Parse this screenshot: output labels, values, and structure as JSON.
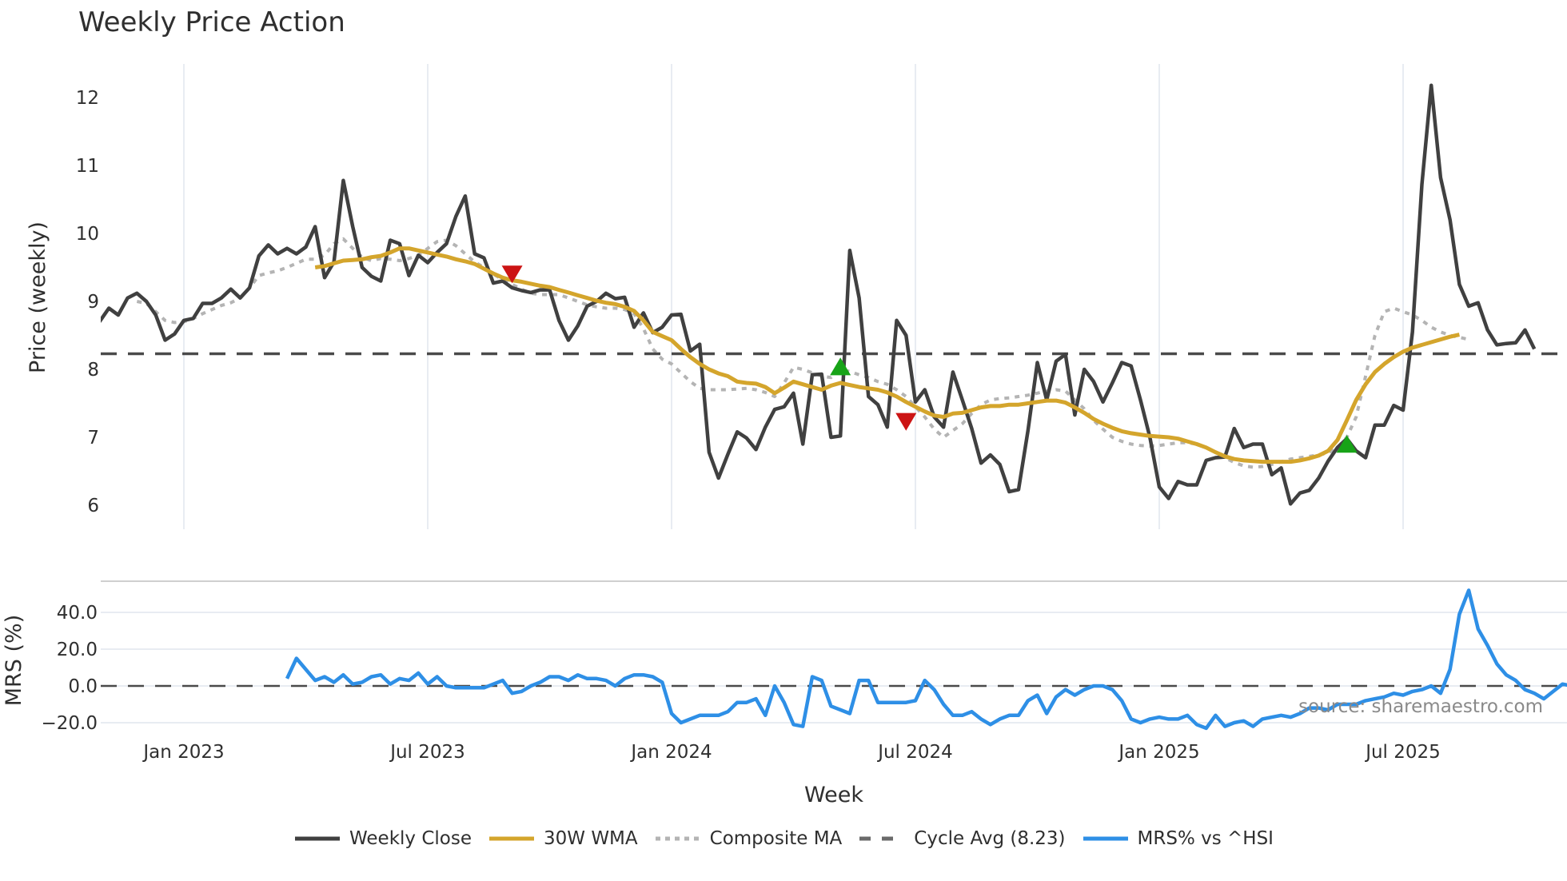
{
  "title": "Weekly Price Action",
  "source": "source: sharemaestro.com",
  "colors": {
    "weekly_close": "#404040",
    "wma": "#d4a52c",
    "composite_ma": "#b4b4b4",
    "cycle_avg": "#4a4a4a",
    "mrs": "#2e8fe6",
    "buy_marker": "#17a317",
    "sell_marker": "#cc1414",
    "grid": "#e8ecf2"
  },
  "legend": [
    {
      "key": "weekly_close",
      "label": "Weekly Close"
    },
    {
      "key": "wma",
      "label": "30W WMA"
    },
    {
      "key": "composite_ma",
      "label": "Composite MA"
    },
    {
      "key": "cycle_avg",
      "label": "Cycle Avg (8.23)"
    },
    {
      "key": "mrs",
      "label": "MRS% vs ^HSI"
    }
  ],
  "chart_data": [
    {
      "type": "line",
      "title": "Weekly Price Action",
      "xlabel": "Week",
      "ylabel": "Price (weekly)",
      "ylim": [
        5.6,
        12.5
      ],
      "yticks": [
        6,
        7,
        8,
        9,
        10,
        11,
        12
      ],
      "xticks": [
        "Jan 2023",
        "Jul 2023",
        "Jan 2024",
        "Jul 2024",
        "Jan 2025",
        "Jul 2025"
      ],
      "grid": true,
      "legend_position": "bottom",
      "cycle_avg": 8.23,
      "x_start_week_index_of_jan2023": 9,
      "weeks_per_half_year": 26,
      "series": [
        {
          "name": "Weekly Close",
          "start_index": 0,
          "values": [
            8.7,
            8.9,
            8.8,
            9.05,
            9.12,
            9.0,
            8.8,
            8.43,
            8.52,
            8.72,
            8.75,
            8.97,
            8.97,
            9.05,
            9.18,
            9.05,
            9.2,
            9.67,
            9.83,
            9.7,
            9.78,
            9.7,
            9.8,
            10.1,
            9.35,
            9.58,
            10.78,
            10.1,
            9.5,
            9.37,
            9.3,
            9.9,
            9.85,
            9.38,
            9.68,
            9.57,
            9.72,
            9.85,
            10.25,
            10.55,
            9.7,
            9.64,
            9.27,
            9.3,
            9.2,
            9.16,
            9.13,
            9.17,
            9.17,
            8.72,
            8.43,
            8.64,
            8.93,
            9.0,
            9.12,
            9.04,
            9.06,
            8.62,
            8.83,
            8.54,
            8.62,
            8.8,
            8.81,
            8.27,
            8.37,
            6.78,
            6.4,
            6.75,
            7.08,
            6.99,
            6.82,
            7.15,
            7.41,
            7.45,
            7.65,
            6.9,
            7.92,
            7.93,
            7.0,
            7.02,
            9.75,
            9.05,
            7.6,
            7.48,
            7.15,
            8.72,
            8.5,
            7.52,
            7.7,
            7.3,
            7.15,
            7.96,
            7.55,
            7.13,
            6.62,
            6.74,
            6.6,
            6.2,
            6.23,
            7.1,
            8.1,
            7.55,
            8.12,
            8.22,
            7.33,
            8.0,
            7.82,
            7.52,
            7.8,
            8.1,
            8.05,
            7.55,
            7.0,
            6.27,
            6.1,
            6.35,
            6.3,
            6.3,
            6.66,
            6.7,
            6.71,
            7.13,
            6.85,
            6.9,
            6.9,
            6.45,
            6.55,
            6.02,
            6.18,
            6.22,
            6.4,
            6.65,
            6.85,
            6.98,
            6.8,
            6.7,
            7.18,
            7.18,
            7.47,
            7.4,
            8.55,
            10.72,
            12.18,
            10.82,
            10.2,
            9.25,
            8.93,
            8.98,
            8.58,
            8.36,
            8.38,
            8.39,
            8.58,
            8.3
          ]
        },
        {
          "name": "30W WMA",
          "start_index": 23,
          "values": [
            9.5,
            9.52,
            9.56,
            9.6,
            9.61,
            9.62,
            9.65,
            9.67,
            9.72,
            9.78,
            9.78,
            9.75,
            9.72,
            9.69,
            9.66,
            9.62,
            9.59,
            9.55,
            9.48,
            9.41,
            9.35,
            9.31,
            9.29,
            9.26,
            9.23,
            9.21,
            9.17,
            9.13,
            9.09,
            9.05,
            9.01,
            8.98,
            8.96,
            8.92,
            8.86,
            8.72,
            8.55,
            8.49,
            8.43,
            8.3,
            8.18,
            8.08,
            8.0,
            7.94,
            7.9,
            7.82,
            7.8,
            7.79,
            7.74,
            7.65,
            7.73,
            7.82,
            7.78,
            7.74,
            7.7,
            7.76,
            7.8,
            7.77,
            7.74,
            7.72,
            7.7,
            7.66,
            7.6,
            7.52,
            7.45,
            7.38,
            7.32,
            7.3,
            7.35,
            7.36,
            7.4,
            7.44,
            7.46,
            7.46,
            7.48,
            7.48,
            7.5,
            7.52,
            7.54,
            7.54,
            7.51,
            7.44,
            7.36,
            7.27,
            7.2,
            7.14,
            7.09,
            7.06,
            7.04,
            7.02,
            7.01,
            7.0,
            6.98,
            6.94,
            6.9,
            6.85,
            6.78,
            6.72,
            6.68,
            6.66,
            6.65,
            6.64,
            6.64,
            6.64,
            6.64,
            6.66,
            6.69,
            6.73,
            6.8,
            6.96,
            7.25,
            7.55,
            7.78,
            7.96,
            8.08,
            8.18,
            8.26,
            8.32,
            8.36,
            8.4,
            8.44,
            8.48,
            8.51
          ]
        },
        {
          "name": "Composite MA",
          "start_index": 4,
          "values": [
            9.0,
            8.97,
            8.85,
            8.72,
            8.69,
            8.7,
            8.75,
            8.82,
            8.88,
            8.94,
            8.98,
            9.05,
            9.2,
            9.38,
            9.42,
            9.45,
            9.5,
            9.56,
            9.62,
            9.62,
            9.68,
            9.85,
            9.92,
            9.78,
            9.65,
            9.6,
            9.63,
            9.62,
            9.6,
            9.63,
            9.68,
            9.78,
            9.88,
            9.9,
            9.82,
            9.7,
            9.58,
            9.5,
            9.4,
            9.32,
            9.25,
            9.18,
            9.12,
            9.1,
            9.1,
            9.1,
            9.05,
            9.0,
            8.95,
            8.92,
            8.9,
            8.9,
            8.88,
            8.82,
            8.6,
            8.3,
            8.15,
            8.08,
            7.95,
            7.82,
            7.72,
            7.7,
            7.7,
            7.7,
            7.71,
            7.72,
            7.7,
            7.66,
            7.6,
            7.8,
            8.03,
            8.0,
            7.95,
            7.9,
            7.88,
            8.0,
            7.97,
            7.92,
            7.88,
            7.82,
            7.78,
            7.7,
            7.6,
            7.45,
            7.3,
            7.12,
            7.0,
            7.1,
            7.2,
            7.35,
            7.48,
            7.55,
            7.57,
            7.58,
            7.6,
            7.62,
            7.65,
            7.68,
            7.7,
            7.68,
            7.55,
            7.42,
            7.25,
            7.12,
            7.0,
            6.94,
            6.9,
            6.88,
            6.87,
            6.88,
            6.9,
            6.92,
            6.92,
            6.9,
            6.85,
            6.78,
            6.7,
            6.63,
            6.58,
            6.56,
            6.57,
            6.6,
            6.64,
            6.68,
            6.7,
            6.72,
            6.74,
            6.77,
            6.85,
            7.0,
            7.3,
            7.9,
            8.5,
            8.85,
            8.9,
            8.85,
            8.8,
            8.72,
            8.62,
            8.55,
            8.5,
            8.47,
            8.44
          ]
        },
        {
          "name": "Cycle Avg (8.23)",
          "constant": 8.23
        }
      ],
      "markers": [
        {
          "type": "sell",
          "shape": "triangle-down",
          "index": 44,
          "y": 9.42
        },
        {
          "type": "buy",
          "shape": "triangle-up",
          "index": 79,
          "y": 8.02
        },
        {
          "type": "sell",
          "shape": "triangle-down",
          "index": 86,
          "y": 7.25
        },
        {
          "type": "buy",
          "shape": "triangle-up",
          "index": 133,
          "y": 6.88
        }
      ]
    },
    {
      "type": "line",
      "title": "",
      "xlabel": "Week",
      "ylabel": "MRS (%)",
      "ylim": [
        -24,
        56
      ],
      "yticks": [
        -20.0,
        0.0,
        20.0,
        40.0
      ],
      "ytick_labels": [
        "−20.0",
        "0.0",
        "20.0",
        "40.0"
      ],
      "grid": true,
      "zero_line": "dashed",
      "series": [
        {
          "name": "MRS% vs ^HSI",
          "start_index": 20,
          "values": [
            4,
            15,
            9,
            3,
            5,
            2,
            6,
            1,
            2,
            5,
            6,
            1,
            4,
            3,
            7,
            1,
            5,
            0,
            -1,
            -1,
            -1,
            -1,
            1,
            3,
            -4,
            -3,
            0,
            2,
            5,
            5,
            3,
            6,
            4,
            4,
            3,
            0,
            4,
            6,
            6,
            5,
            2,
            -15,
            -20,
            -18,
            -16,
            -16,
            -16,
            -14,
            -9,
            -9,
            -7,
            -16,
            0,
            -9,
            -21,
            -22,
            5,
            3,
            -11,
            -13,
            -15,
            3,
            3,
            -9,
            -9,
            -9,
            -9,
            -8,
            3,
            -2,
            -10,
            -16,
            -16,
            -14,
            -18,
            -21,
            -18,
            -16,
            -16,
            -8,
            -5,
            -15,
            -6,
            -2,
            -5,
            -2,
            0,
            0,
            -2,
            -8,
            -18,
            -20,
            -18,
            -17,
            -18,
            -18,
            -16,
            -21,
            -23,
            -16,
            -22,
            -20,
            -19,
            -22,
            -18,
            -17,
            -16,
            -17,
            -15,
            -12,
            -12,
            -13,
            -10,
            -10,
            -10,
            -8,
            -7,
            -6,
            -4,
            -5,
            -3,
            -2,
            0,
            -4,
            9,
            39,
            52,
            31,
            22,
            12,
            6,
            3,
            -2,
            -4,
            -7,
            -3,
            1,
            0,
            -5
          ]
        }
      ]
    }
  ],
  "axes": {
    "price": {
      "title": "Price (weekly)",
      "ticks": [
        "6",
        "7",
        "8",
        "9",
        "10",
        "11",
        "12"
      ]
    },
    "mrs": {
      "title": "MRS (%)",
      "ticks": [
        "40.0",
        "20.0",
        "0.0",
        "−20.0"
      ]
    },
    "x": {
      "title": "Week",
      "ticks": [
        "Jan 2023",
        "Jul 2023",
        "Jan 2024",
        "Jul 2024",
        "Jan 2025",
        "Jul 2025"
      ]
    }
  }
}
